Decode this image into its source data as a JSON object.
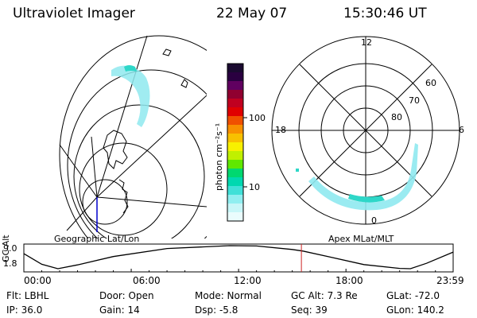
{
  "header": {
    "instrument": "Ultraviolet Imager",
    "date": "22 May 07",
    "time": "15:30:46 UT"
  },
  "left_panel": {
    "label": "Geographic Lat/Lon"
  },
  "right_panel": {
    "label": "Apex MLat/MLT",
    "mlt_labels": [
      "12",
      "6",
      "0",
      "18"
    ],
    "mlat_labels": [
      "60",
      "70",
      "80"
    ]
  },
  "colorbar": {
    "label": "photon cm⁻²s⁻¹",
    "ticks": [
      "100",
      "10"
    ],
    "colors": [
      "#1a0a30",
      "#2a0040",
      "#600060",
      "#900030",
      "#c00020",
      "#e00000",
      "#f05000",
      "#f89000",
      "#f8c000",
      "#f8f000",
      "#c0f000",
      "#60e800",
      "#00d870",
      "#00d8b0",
      "#40e0d8",
      "#90eef0",
      "#c8f6f8",
      "#eafcfd"
    ]
  },
  "chart_data": {
    "type": "line",
    "title": "",
    "ylabel": "GC Alt",
    "yticks": [
      "9.0",
      "1.8"
    ],
    "ylim": [
      1.8,
      9.0
    ],
    "xticks": [
      "00:00",
      "06:00",
      "12:00",
      "18:00",
      "23:59"
    ],
    "x": [
      0,
      1,
      1.9,
      3,
      5,
      8,
      11.5,
      13,
      15,
      15.6,
      17,
      19,
      21,
      21.6,
      22.5,
      23.99
    ],
    "values": [
      6.5,
      3.2,
      1.8,
      3.0,
      5.6,
      8.1,
      9.0,
      8.9,
      7.8,
      7.3,
      5.6,
      3.1,
      1.9,
      1.8,
      3.5,
      7.0
    ],
    "current_time_hours": 15.51,
    "current_marker_color": "#cc2222"
  },
  "status": {
    "flt": "Flt: LBHL",
    "door": "Door: Open",
    "mode": "Mode: Normal",
    "gc_alt": "GC Alt: 7.3 Re",
    "glat": "GLat: -72.0",
    "ip": "IP: 36.0",
    "gain": "Gain: 14",
    "dsp": "Dsp:   -5.8",
    "seq": "Seq: 39",
    "glon": "GLon: 140.2"
  }
}
